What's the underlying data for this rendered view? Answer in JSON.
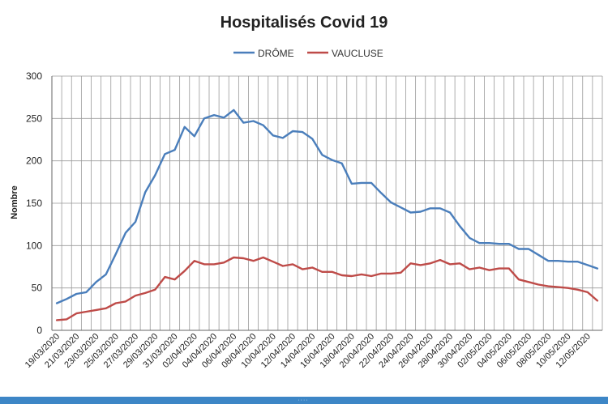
{
  "chart_data": {
    "type": "line",
    "title": "Hospitalisés Covid 19",
    "xlabel": "",
    "ylabel": "Nombre",
    "ylim": [
      0,
      300
    ],
    "yticks": [
      0,
      50,
      100,
      150,
      200,
      250,
      300
    ],
    "grid": true,
    "legend_position": "top-center",
    "x": [
      "19/03/2020",
      "20/03/2020",
      "21/03/2020",
      "22/03/2020",
      "23/03/2020",
      "24/03/2020",
      "25/03/2020",
      "26/03/2020",
      "27/03/2020",
      "28/03/2020",
      "29/03/2020",
      "30/03/2020",
      "31/03/2020",
      "01/04/2020",
      "02/04/2020",
      "03/04/2020",
      "04/04/2020",
      "05/04/2020",
      "06/04/2020",
      "07/04/2020",
      "08/04/2020",
      "09/04/2020",
      "10/04/2020",
      "11/04/2020",
      "12/04/2020",
      "13/04/2020",
      "14/04/2020",
      "15/04/2020",
      "16/04/2020",
      "17/04/2020",
      "18/04/2020",
      "19/04/2020",
      "20/04/2020",
      "21/04/2020",
      "22/04/2020",
      "23/04/2020",
      "24/04/2020",
      "25/04/2020",
      "26/04/2020",
      "27/04/2020",
      "28/04/2020",
      "29/04/2020",
      "30/04/2020",
      "01/05/2020",
      "02/05/2020",
      "03/05/2020",
      "04/05/2020",
      "05/05/2020",
      "06/05/2020",
      "07/05/2020",
      "08/05/2020",
      "09/05/2020",
      "10/05/2020",
      "11/05/2020",
      "12/05/2020",
      "13/05/2020"
    ],
    "x_tick_labels": [
      "19/03/2020",
      "21/03/2020",
      "23/03/2020",
      "25/03/2020",
      "27/03/2020",
      "29/03/2020",
      "31/03/2020",
      "02/04/2020",
      "04/04/2020",
      "06/04/2020",
      "08/04/2020",
      "10/04/2020",
      "12/04/2020",
      "14/04/2020",
      "16/04/2020",
      "18/04/2020",
      "20/04/2020",
      "22/04/2020",
      "24/04/2020",
      "26/04/2020",
      "28/04/2020",
      "30/04/2020",
      "02/05/2020",
      "04/05/2020",
      "06/05/2020",
      "08/05/2020",
      "10/05/2020",
      "12/05/2020"
    ],
    "series": [
      {
        "name": "DRÔME",
        "color": "#4a7ebb",
        "values": [
          32,
          37,
          43,
          45,
          57,
          66,
          90,
          115,
          128,
          163,
          183,
          208,
          213,
          240,
          229,
          250,
          254,
          251,
          260,
          245,
          247,
          242,
          230,
          227,
          235,
          234,
          226,
          207,
          201,
          197,
          173,
          174,
          174,
          162,
          151,
          145,
          139,
          140,
          144,
          144,
          139,
          123,
          109,
          103,
          103,
          102,
          102,
          96,
          96,
          89,
          82,
          82,
          81,
          81,
          77,
          73
        ]
      },
      {
        "name": "VAUCLUSE",
        "color": "#be4b48",
        "values": [
          12,
          13,
          20,
          22,
          24,
          26,
          32,
          34,
          41,
          44,
          48,
          63,
          60,
          70,
          82,
          78,
          78,
          80,
          86,
          85,
          82,
          86,
          81,
          76,
          78,
          72,
          74,
          69,
          69,
          65,
          64,
          66,
          64,
          67,
          67,
          68,
          79,
          77,
          79,
          83,
          78,
          79,
          72,
          74,
          71,
          73,
          73,
          60,
          57,
          54,
          52,
          51,
          50,
          48,
          45,
          35
        ]
      }
    ]
  }
}
